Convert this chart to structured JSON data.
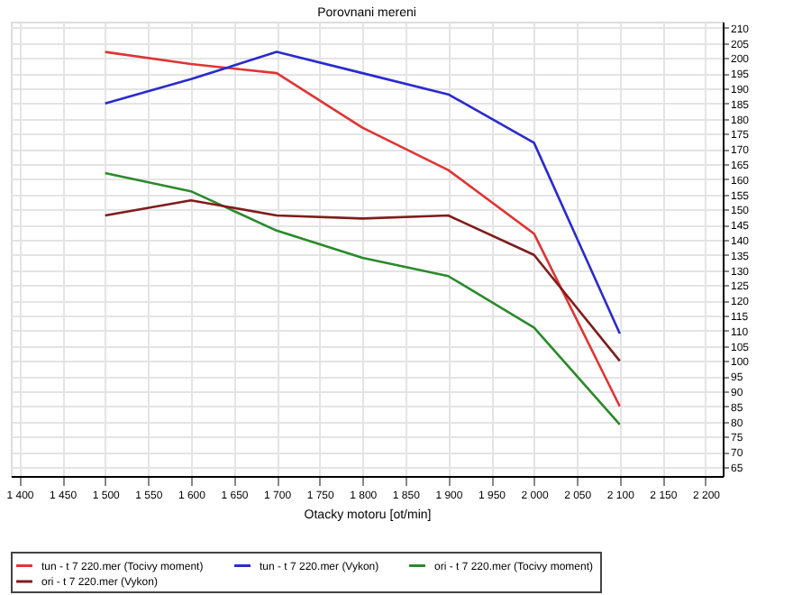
{
  "chart_data": {
    "type": "line",
    "title": "Porovnani mereni",
    "xlabel": "Otacky motoru [ot/min]",
    "xlim": [
      1390,
      2220
    ],
    "xticks": [
      {
        "value": 1400,
        "label": "1 400"
      },
      {
        "value": 1450,
        "label": "1 450"
      },
      {
        "value": 1500,
        "label": "1 500"
      },
      {
        "value": 1550,
        "label": "1 550"
      },
      {
        "value": 1600,
        "label": "1 600"
      },
      {
        "value": 1650,
        "label": "1 650"
      },
      {
        "value": 1700,
        "label": "1 700"
      },
      {
        "value": 1750,
        "label": "1 750"
      },
      {
        "value": 1800,
        "label": "1 800"
      },
      {
        "value": 1850,
        "label": "1 850"
      },
      {
        "value": 1900,
        "label": "1 900"
      },
      {
        "value": 1950,
        "label": "1 950"
      },
      {
        "value": 2000,
        "label": "2 000"
      },
      {
        "value": 2050,
        "label": "2 050"
      },
      {
        "value": 2100,
        "label": "2 100"
      },
      {
        "value": 2150,
        "label": "2 150"
      },
      {
        "value": 2200,
        "label": "2 200"
      }
    ],
    "ylim": [
      62,
      212
    ],
    "yticks": [
      65,
      70,
      75,
      80,
      85,
      90,
      95,
      100,
      105,
      110,
      115,
      120,
      125,
      130,
      135,
      140,
      145,
      150,
      155,
      160,
      165,
      170,
      175,
      180,
      185,
      190,
      195,
      200,
      205,
      210
    ],
    "grid": true,
    "legend": "bottom",
    "line_style": "solid",
    "marker": "none",
    "x": [
      1500,
      1600,
      1700,
      1800,
      1900,
      2000,
      2100
    ],
    "series": [
      {
        "name": "tun - t 7 220.mer  (Tocivy moment)",
        "color": "#e03434",
        "values": [
          202,
          198,
          195,
          177,
          163,
          142,
          85
        ]
      },
      {
        "name": "tun - t 7 220.mer  (Vykon)",
        "color": "#2a2ad0",
        "values": [
          185,
          193,
          202,
          195,
          188,
          172,
          109
        ]
      },
      {
        "name": "ori - t 7 220.mer  (Tocivy moment)",
        "color": "#2a8a2a",
        "values": [
          162,
          156,
          143,
          134,
          128,
          111,
          79
        ]
      },
      {
        "name": "ori - t 7 220.mer  (Vykon)",
        "color": "#801c1c",
        "values": [
          148,
          153,
          148,
          147,
          148,
          135,
          100
        ]
      }
    ]
  }
}
